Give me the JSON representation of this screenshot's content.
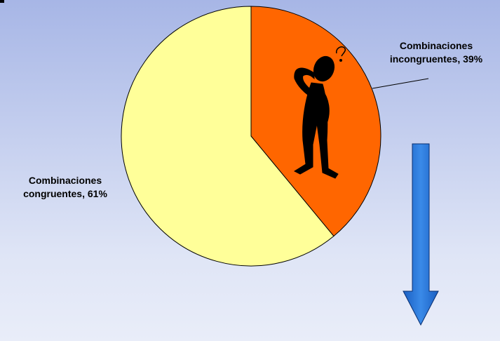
{
  "chart_data": {
    "type": "pie",
    "values": [
      39,
      61
    ],
    "value_labels": [
      "Combinaciones incongruentes, 39%",
      "Combinaciones congruentes, 61%"
    ],
    "colors": [
      "#ff6600",
      "#ffff99"
    ]
  }
}
